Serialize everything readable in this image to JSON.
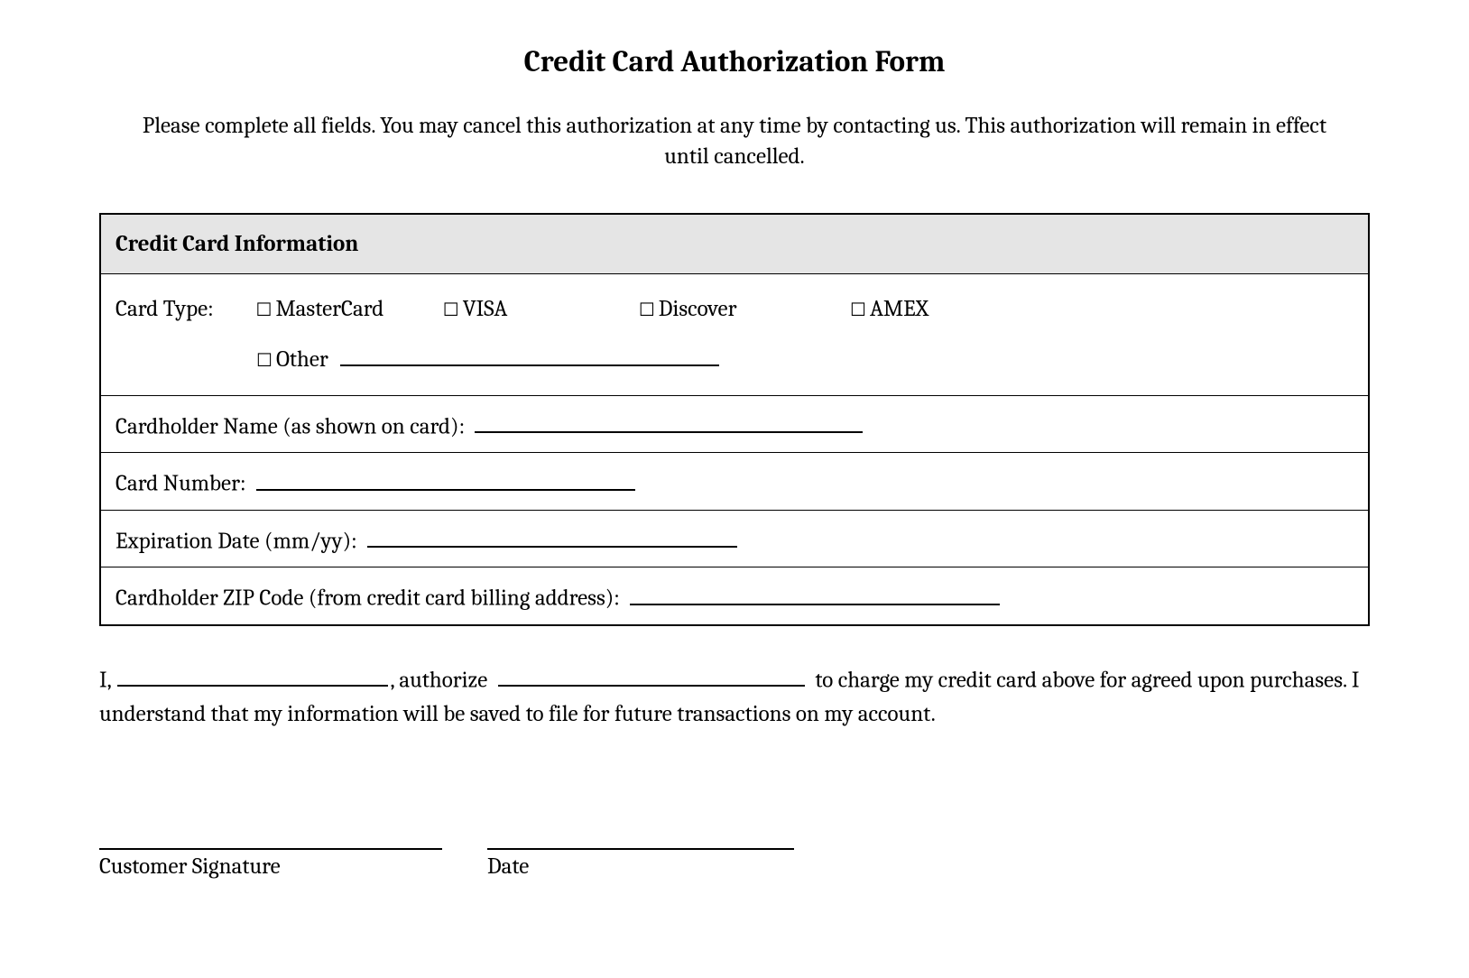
{
  "title": "Credit Card Authorization Form",
  "instructions": "Please complete all fields. You may cancel this authorization at any time by contacting us. This authorization will remain in effect until cancelled.",
  "section_header": "Credit Card Information",
  "card_type": {
    "label": "Card Type:",
    "options": {
      "mastercard": "MasterCard",
      "visa": "VISA",
      "discover": "Discover",
      "amex": "AMEX",
      "other": "Other"
    }
  },
  "fields": {
    "cardholder_name": "Cardholder Name (as shown on card):",
    "card_number": "Card Number:",
    "expiration": "Expiration Date (mm/yy):",
    "zip": "Cardholder ZIP Code (from credit card billing address):"
  },
  "authorization": {
    "prefix": "I,",
    "mid1": ", authorize",
    "mid2": "to charge my credit card above for agreed upon purchases. I understand that my information will be saved to file for future transactions on my account."
  },
  "signature": {
    "customer": "Customer Signature",
    "date": "Date"
  },
  "styling": {
    "background_color": "#ffffff",
    "text_color": "#000000",
    "header_bg": "#e5e5e5",
    "border_color": "#000000",
    "title_fontsize": 33,
    "body_fontsize": 25,
    "section_header_fontsize": 27,
    "font_family": "Cambria, Georgia, serif"
  }
}
